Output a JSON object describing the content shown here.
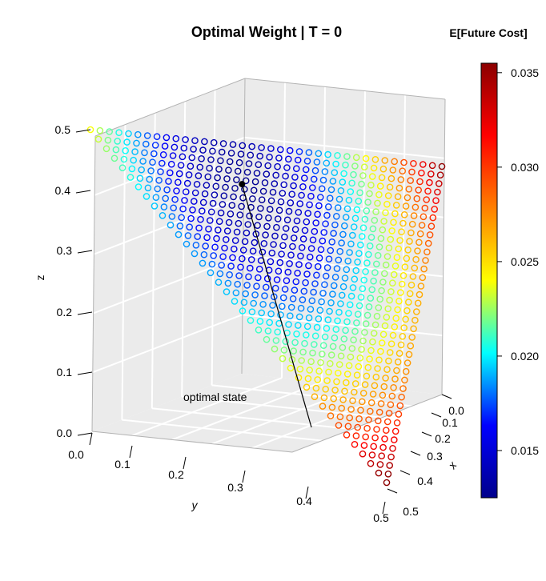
{
  "chart_data": {
    "type": "scatter",
    "title": "Optimal Weight | T = 0",
    "xlabel": "x",
    "ylabel": "y",
    "zlabel": "z",
    "x_ticks": [
      "0.0",
      "0.1",
      "0.2",
      "0.3",
      "0.4",
      "0.5"
    ],
    "y_ticks": [
      "0.0",
      "0.1",
      "0.2",
      "0.3",
      "0.4",
      "0.5"
    ],
    "z_ticks": [
      "0.0",
      "0.1",
      "0.2",
      "0.3",
      "0.4",
      "0.5"
    ],
    "xlim": [
      0,
      0.5
    ],
    "ylim": [
      0,
      0.5
    ],
    "zlim": [
      0,
      0.5
    ],
    "constraint": "x + y + z = 0.5",
    "grid": true,
    "colorbar": {
      "title": "E[Future Cost]",
      "min": 0.0125,
      "max": 0.0355,
      "ticks": [
        "0.015",
        "0.020",
        "0.025",
        "0.030",
        "0.035"
      ],
      "tick_values": [
        0.015,
        0.02,
        0.025,
        0.03,
        0.035
      ],
      "colors": [
        "#00008b",
        "#0000ff",
        "#00ffff",
        "#ffff00",
        "#ff7f00",
        "#ff0000",
        "#8b0000"
      ]
    },
    "optimal_point": {
      "x": 0.12,
      "y": 0.375,
      "z": 0.005,
      "label": "optimal state"
    },
    "grid_step": 0.0135
  }
}
